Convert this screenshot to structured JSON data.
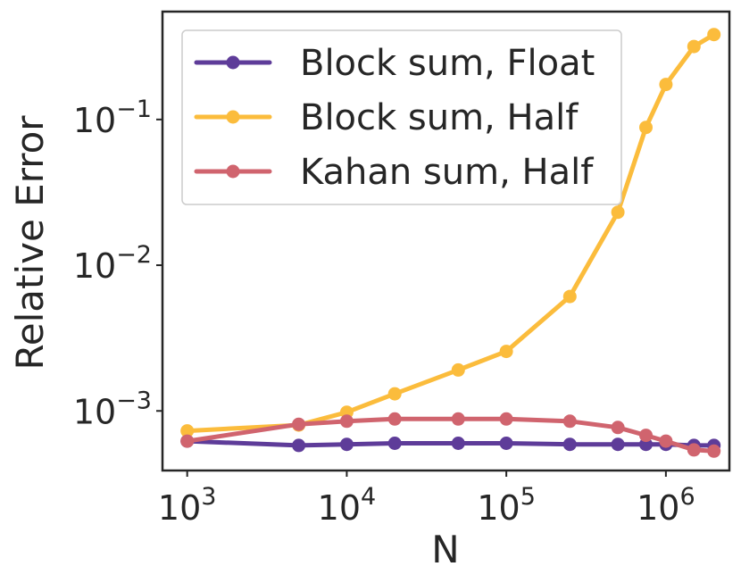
{
  "chart_data": {
    "type": "line",
    "title": "",
    "xlabel": "N",
    "ylabel": "Relative Error",
    "xscale": "log",
    "yscale": "log",
    "xlim": [
      700,
      2500000
    ],
    "ylim": [
      0.00039,
      0.55
    ],
    "grid": false,
    "legend_position": "top-left",
    "xticks": [
      {
        "value": 1000,
        "base": "10",
        "exp": "3"
      },
      {
        "value": 10000,
        "base": "10",
        "exp": "4"
      },
      {
        "value": 100000,
        "base": "10",
        "exp": "5"
      },
      {
        "value": 1000000,
        "base": "10",
        "exp": "6"
      }
    ],
    "yticks": [
      {
        "value": 0.001,
        "base": "10",
        "exp": "−3"
      },
      {
        "value": 0.01,
        "base": "10",
        "exp": "−2"
      },
      {
        "value": 0.1,
        "base": "10",
        "exp": "−1"
      }
    ],
    "series": [
      {
        "name": "Block sum, Float",
        "color": "#5e3c99",
        "x": [
          1000,
          5000,
          10000,
          20000,
          50000,
          100000,
          250000,
          500000,
          750000,
          1000000,
          1500000,
          2000000
        ],
        "y": [
          0.00062,
          0.00058,
          0.00059,
          0.0006,
          0.0006,
          0.0006,
          0.00059,
          0.00059,
          0.00059,
          0.00059,
          0.00058,
          0.00058
        ]
      },
      {
        "name": "Block sum, Half",
        "color": "#fbbc3c",
        "x": [
          1000,
          5000,
          10000,
          20000,
          50000,
          100000,
          250000,
          500000,
          750000,
          1000000,
          1500000,
          2000000
        ],
        "y": [
          0.00073,
          0.0008,
          0.00098,
          0.00131,
          0.00191,
          0.00256,
          0.0061,
          0.0231,
          0.0883,
          0.174,
          0.317,
          0.383
        ]
      },
      {
        "name": "Kahan sum, Half",
        "color": "#d0646e",
        "x": [
          1000,
          5000,
          10000,
          20000,
          50000,
          100000,
          250000,
          500000,
          750000,
          1000000,
          1500000,
          2000000
        ],
        "y": [
          0.00062,
          0.00081,
          0.00085,
          0.00088,
          0.00088,
          0.00088,
          0.00085,
          0.00077,
          0.00068,
          0.00062,
          0.00054,
          0.00053
        ]
      }
    ]
  }
}
